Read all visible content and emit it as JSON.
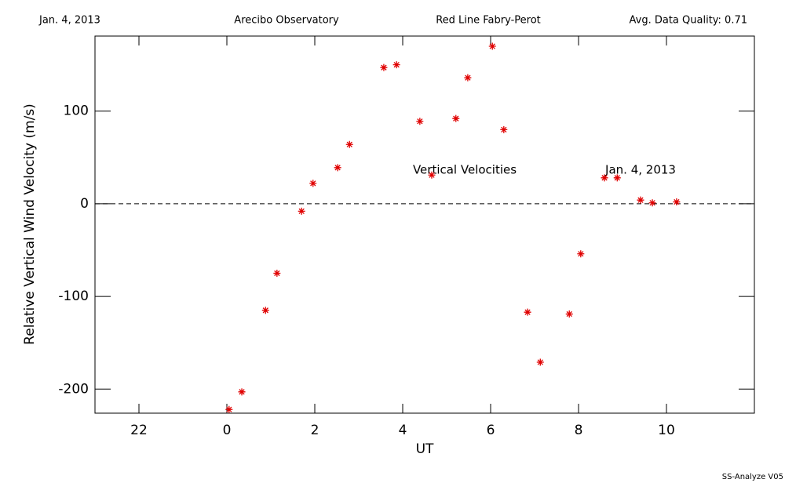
{
  "header": {
    "left": "Jan. 4, 2013",
    "center_left": "Arecibo Observatory",
    "center_right": "Red Line Fabry-Perot",
    "right": "Avg. Data Quality: 0.71"
  },
  "footer": "SS-Analyze V05",
  "chart_data": {
    "type": "scatter",
    "x_label": "UT",
    "y_label": "Relative Vertical Wind Velocity (m/s)",
    "annotations": [
      "Vertical Velocities",
      "Jan. 4, 2013"
    ],
    "color": "#e00000",
    "marker": "asterisk",
    "reference_line": 0,
    "xlim": [
      -3,
      12
    ],
    "xticks": [
      {
        "value": -2,
        "label": "22"
      },
      0,
      2,
      4,
      6,
      8,
      10
    ],
    "ylim": [
      -226,
      181
    ],
    "yticks": [
      -200,
      -100,
      0,
      100
    ],
    "x": [
      0.05,
      0.34,
      0.88,
      1.14,
      1.7,
      1.96,
      2.52,
      2.79,
      3.57,
      3.86,
      4.39,
      4.66,
      5.21,
      5.48,
      6.04,
      6.3,
      6.84,
      7.13,
      7.79,
      8.05,
      8.59,
      8.88,
      9.41,
      9.68,
      10.23
    ],
    "values": [
      -222,
      -203,
      -115,
      -75,
      -8,
      22,
      39,
      64,
      147,
      150,
      89,
      31,
      92,
      136,
      170,
      80,
      -117,
      -171,
      -119,
      -54,
      28,
      28,
      4,
      1,
      2
    ]
  }
}
